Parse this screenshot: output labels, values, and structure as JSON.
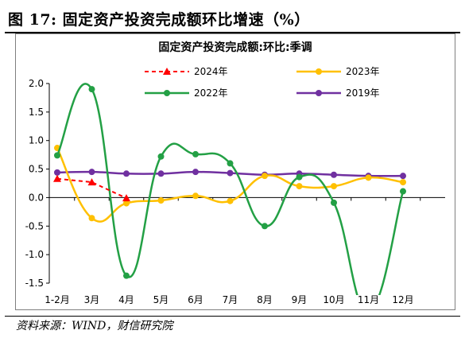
{
  "figure": {
    "title": "图 17:  固定资产投资完成额环比增速（%）",
    "source": "资料来源：WIND，财信研究院"
  },
  "chart_data": {
    "type": "line",
    "title": "固定资产投资完成额:环比:季调",
    "categories": [
      "1-2月",
      "3月",
      "4月",
      "5月",
      "6月",
      "7月",
      "8月",
      "9月",
      "10月",
      "11月",
      "12月"
    ],
    "yticks": [
      "2.0",
      "1.5",
      "1.0",
      "0.5",
      "0.0",
      "-0.5",
      "-1.0",
      "-1.5"
    ],
    "ylim": [
      -1.5,
      2.0
    ],
    "grid": false,
    "legend_position": "top",
    "series": [
      {
        "name": "2024年",
        "color": "#ff0000",
        "style": "dashed",
        "marker": "triangle",
        "values": [
          0.33,
          0.27,
          -0.01,
          null,
          null,
          null,
          null,
          null,
          null,
          null,
          null
        ]
      },
      {
        "name": "2023年",
        "color": "#ffc000",
        "style": "smooth",
        "marker": "circle",
        "values": [
          0.87,
          -0.36,
          -0.1,
          -0.05,
          0.03,
          -0.06,
          0.38,
          0.2,
          0.2,
          0.35,
          0.27
        ]
      },
      {
        "name": "2022年",
        "color": "#23a045",
        "style": "smooth",
        "marker": "circle",
        "values": [
          0.74,
          1.9,
          -1.37,
          0.72,
          0.76,
          0.6,
          -0.5,
          0.36,
          -0.09,
          -2.0,
          0.11
        ]
      },
      {
        "name": "2019年",
        "color": "#7030a0",
        "style": "smooth",
        "marker": "circle",
        "values": [
          0.44,
          0.45,
          0.42,
          0.42,
          0.45,
          0.43,
          0.4,
          0.42,
          0.4,
          0.38,
          0.38
        ]
      }
    ]
  }
}
